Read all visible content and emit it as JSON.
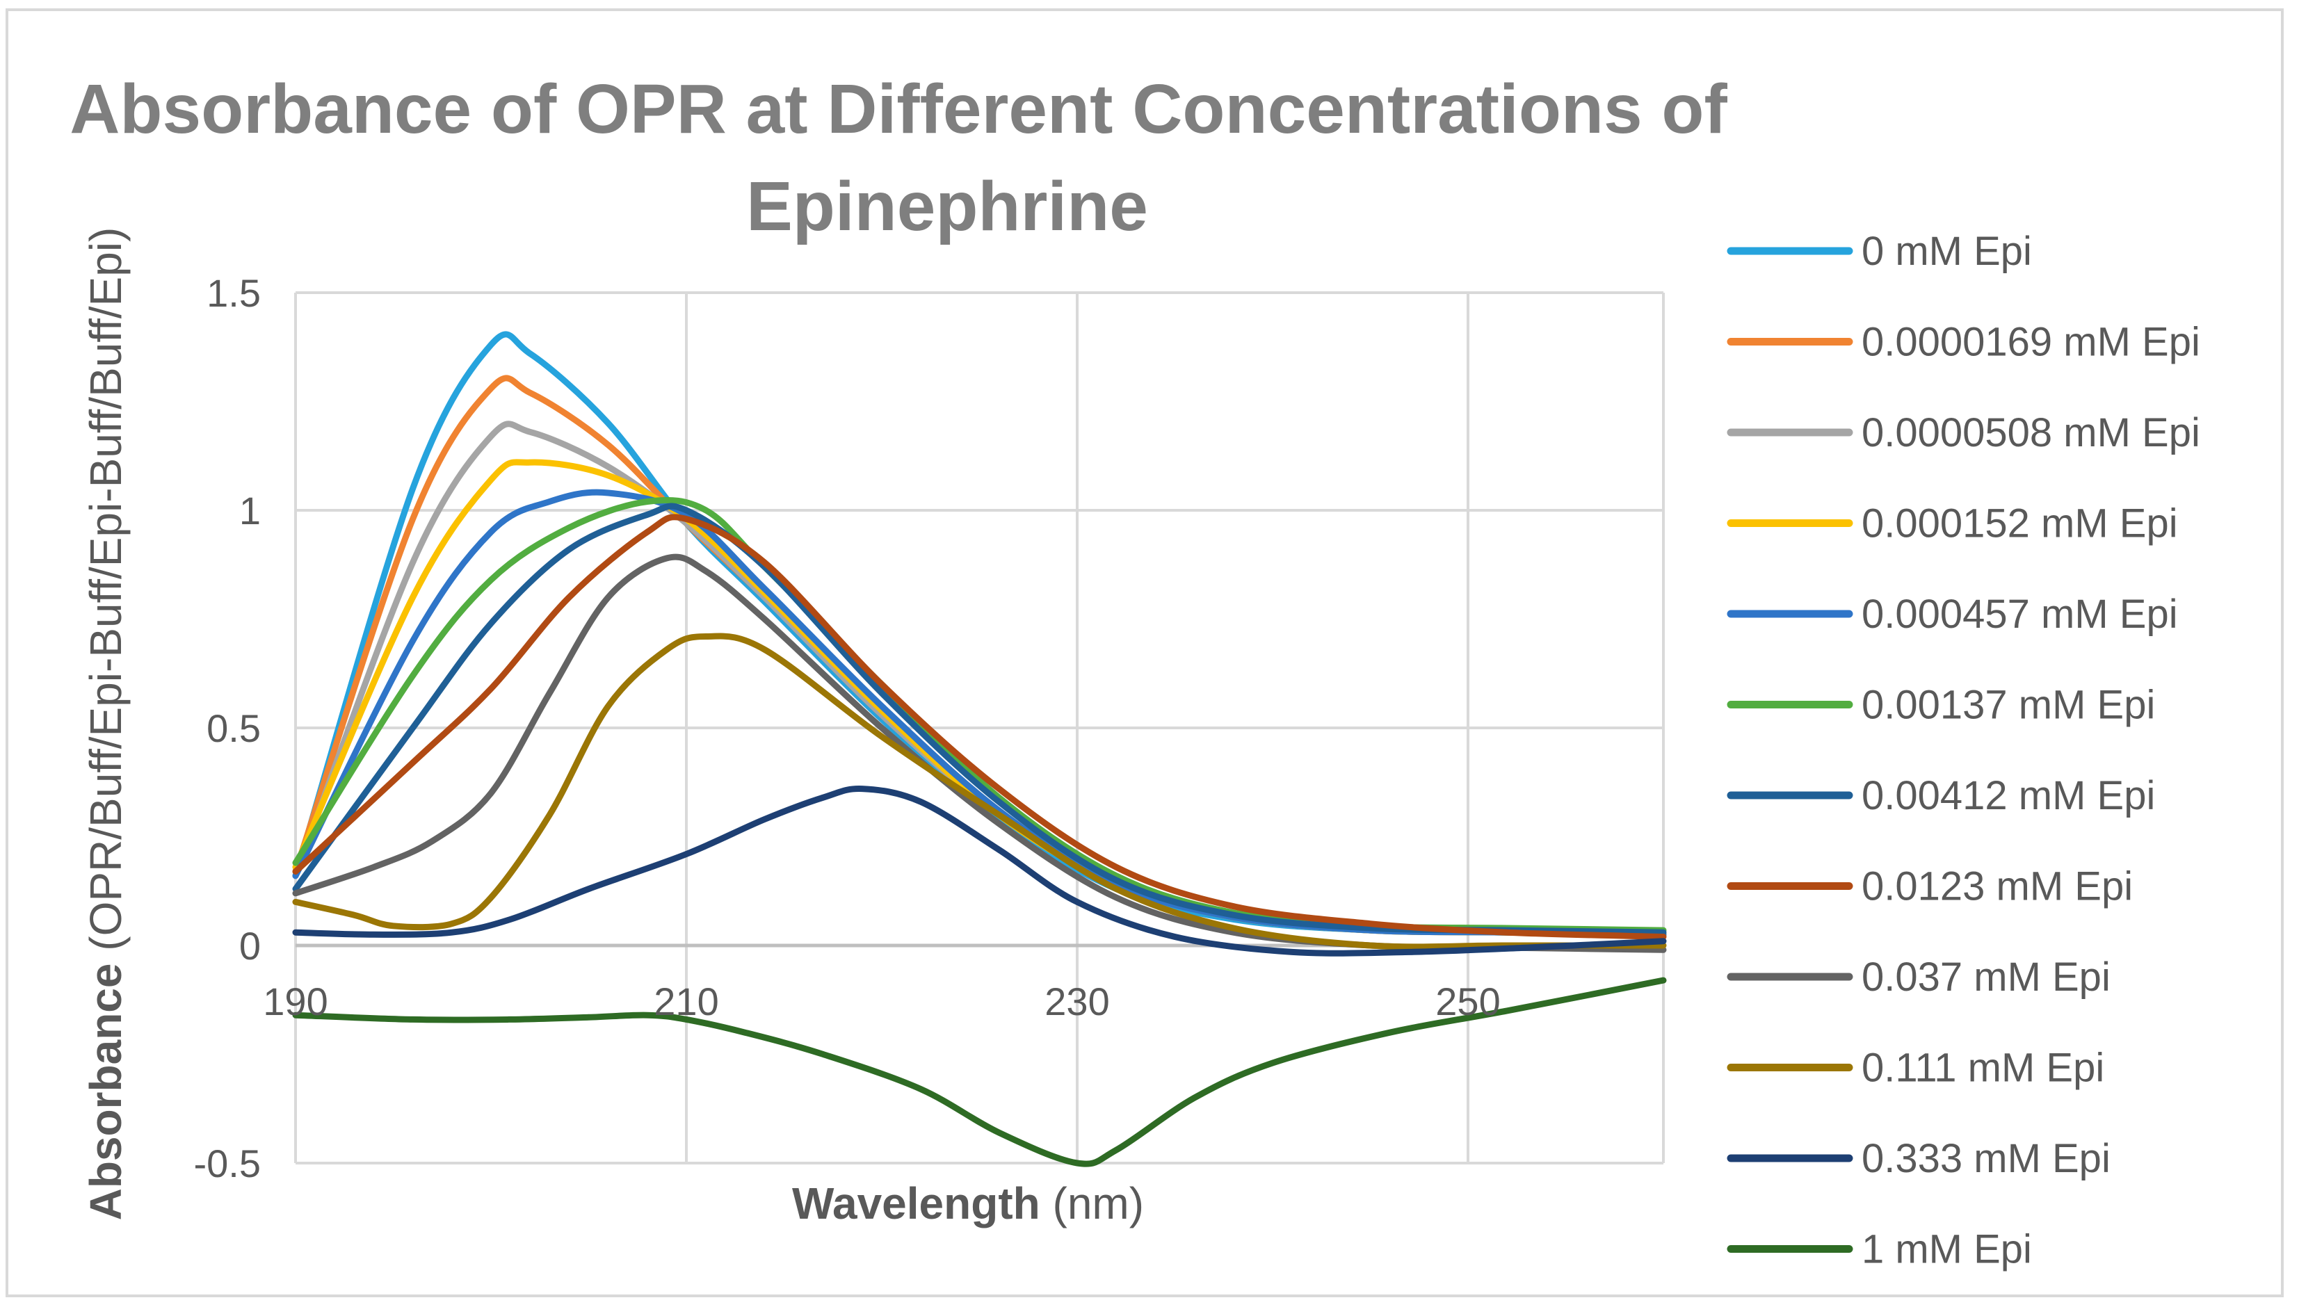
{
  "chart_data": {
    "type": "line",
    "title_line1": "Absorbance of OPR at Different Concentrations of",
    "title_line2": "Epinephrine",
    "xlabel_bold": "Wavelength",
    "xlabel_rest": " (nm)",
    "ylabel_bold": "Absorbance",
    "ylabel_rest": " (OPR/Buff/Epi-Buff/Epi-Buff/Buff/Epi)",
    "xlim": [
      190,
      260
    ],
    "ylim": [
      -0.5,
      1.5
    ],
    "x_ticks": [
      190,
      210,
      230,
      250
    ],
    "x_tick_labels": [
      "190",
      "210",
      "230",
      "250"
    ],
    "y_ticks": [
      -0.5,
      0,
      0.5,
      1,
      1.5
    ],
    "y_tick_labels": [
      "-0.5",
      "0",
      "0.5",
      "1",
      "1.5"
    ],
    "grid": true,
    "legend_position": "right",
    "series": [
      {
        "name": "0 mM Epi",
        "color": "#26a3dd",
        "x": [
          190,
          196,
          200,
          202,
          206,
          210,
          214,
          220,
          226,
          232,
          238,
          245,
          252,
          260
        ],
        "y": [
          0.16,
          1.05,
          1.38,
          1.36,
          1.2,
          0.97,
          0.79,
          0.52,
          0.29,
          0.13,
          0.06,
          0.035,
          0.03,
          0.025
        ]
      },
      {
        "name": "0.0000169 mM Epi",
        "color": "#f08331",
        "x": [
          190,
          196,
          200,
          202,
          206,
          210,
          214,
          220,
          226,
          232,
          238,
          245,
          252,
          260
        ],
        "y": [
          0.17,
          0.98,
          1.28,
          1.27,
          1.15,
          0.97,
          0.8,
          0.53,
          0.3,
          0.14,
          0.065,
          0.035,
          0.03,
          0.025
        ]
      },
      {
        "name": "0.0000508 mM Epi",
        "color": "#a5a5a5",
        "x": [
          190,
          196,
          200,
          202,
          206,
          210,
          214,
          220,
          226,
          232,
          238,
          245,
          252,
          260
        ],
        "y": [
          0.16,
          0.88,
          1.17,
          1.18,
          1.1,
          0.97,
          0.8,
          0.53,
          0.3,
          0.14,
          0.065,
          0.035,
          0.03,
          0.025
        ]
      },
      {
        "name": "0.000152 mM Epi",
        "color": "#fbc100",
        "x": [
          190,
          196,
          200,
          202,
          206,
          210,
          214,
          220,
          226,
          232,
          238,
          245,
          252,
          260
        ],
        "y": [
          0.18,
          0.8,
          1.07,
          1.11,
          1.08,
          0.98,
          0.81,
          0.54,
          0.3,
          0.14,
          0.065,
          0.035,
          0.03,
          0.025
        ]
      },
      {
        "name": "0.000457 mM Epi",
        "color": "#2f75c8",
        "x": [
          190,
          196,
          200,
          203,
          206,
          210,
          214,
          220,
          226,
          232,
          238,
          245,
          252,
          260
        ],
        "y": [
          0.16,
          0.7,
          0.95,
          1.02,
          1.04,
          0.99,
          0.82,
          0.55,
          0.31,
          0.14,
          0.065,
          0.035,
          0.03,
          0.025
        ]
      },
      {
        "name": "0.00137 mM Epi",
        "color": "#52ad40",
        "x": [
          190,
          196,
          200,
          204,
          208,
          211,
          214,
          220,
          226,
          232,
          238,
          245,
          252,
          260
        ],
        "y": [
          0.19,
          0.62,
          0.84,
          0.96,
          1.02,
          1.0,
          0.87,
          0.6,
          0.34,
          0.16,
          0.075,
          0.045,
          0.04,
          0.035
        ]
      },
      {
        "name": "0.00412 mM Epi",
        "color": "#1f5f96",
        "x": [
          190,
          196,
          200,
          204,
          208,
          210,
          214,
          220,
          226,
          232,
          238,
          245,
          252,
          260
        ],
        "y": [
          0.13,
          0.5,
          0.74,
          0.91,
          0.99,
          1.0,
          0.87,
          0.58,
          0.33,
          0.15,
          0.07,
          0.04,
          0.035,
          0.03
        ]
      },
      {
        "name": "0.0123 mM Epi",
        "color": "#b14a13",
        "x": [
          190,
          196,
          200,
          204,
          208,
          210,
          214,
          220,
          226,
          232,
          238,
          245,
          252,
          260
        ],
        "y": [
          0.17,
          0.42,
          0.59,
          0.8,
          0.95,
          0.98,
          0.88,
          0.6,
          0.36,
          0.18,
          0.09,
          0.05,
          0.03,
          0.02
        ]
      },
      {
        "name": "0.037 mM Epi",
        "color": "#636363",
        "x": [
          190,
          194,
          197,
          200,
          203,
          206,
          209,
          211,
          214,
          220,
          226,
          232,
          238,
          245,
          252,
          260
        ],
        "y": [
          0.12,
          0.18,
          0.24,
          0.35,
          0.58,
          0.8,
          0.89,
          0.86,
          0.75,
          0.5,
          0.28,
          0.11,
          0.03,
          0.0,
          -0.005,
          -0.01
        ]
      },
      {
        "name": "0.111 mM Epi",
        "color": "#9b7605",
        "x": [
          190,
          193,
          195,
          198,
          200,
          203,
          206,
          209,
          211,
          214,
          220,
          226,
          232,
          238,
          245,
          252,
          260
        ],
        "y": [
          0.1,
          0.07,
          0.045,
          0.05,
          0.11,
          0.3,
          0.55,
          0.68,
          0.71,
          0.68,
          0.48,
          0.3,
          0.13,
          0.04,
          0.0,
          0.0,
          0.0
        ]
      },
      {
        "name": "0.333 mM Epi",
        "color": "#1d3f73",
        "x": [
          190,
          194,
          198,
          201,
          205,
          210,
          214,
          217,
          219,
          222,
          226,
          230,
          235,
          241,
          247,
          253,
          260
        ],
        "y": [
          0.03,
          0.025,
          0.03,
          0.06,
          0.13,
          0.21,
          0.29,
          0.34,
          0.36,
          0.33,
          0.22,
          0.1,
          0.02,
          -0.015,
          -0.015,
          -0.005,
          0.01
        ]
      },
      {
        "name": "1 mM Epi",
        "color": "#2e6b24",
        "x": [
          190,
          196,
          201,
          205,
          208,
          210,
          213,
          217,
          222,
          226,
          230,
          232,
          236,
          240,
          246,
          252,
          260
        ],
        "y": [
          -0.16,
          -0.17,
          -0.17,
          -0.165,
          -0.16,
          -0.17,
          -0.2,
          -0.25,
          -0.33,
          -0.43,
          -0.5,
          -0.47,
          -0.35,
          -0.27,
          -0.2,
          -0.15,
          -0.08
        ]
      }
    ]
  }
}
